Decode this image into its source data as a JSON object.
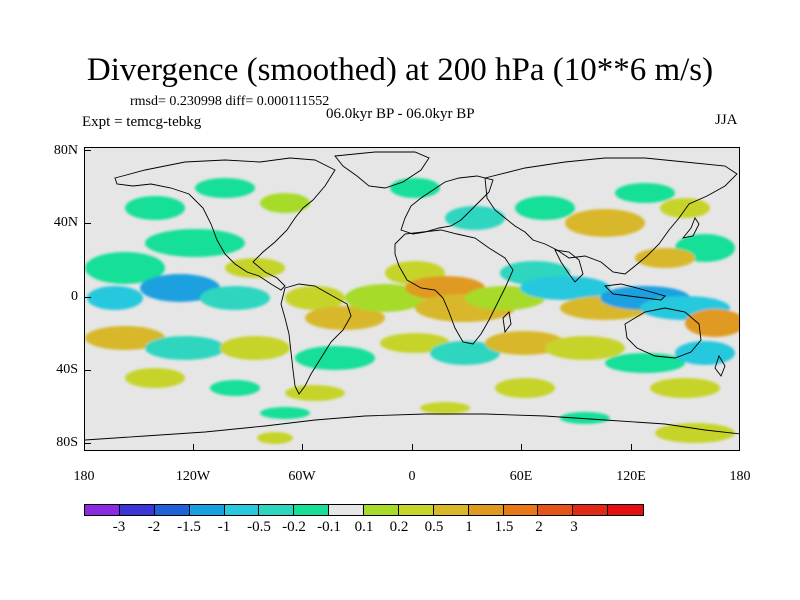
{
  "title": "Divergence (smoothed) at 200 hPa (10**6 m/s)",
  "stats": "rmsd= 0.230998 diff= 0.000111552",
  "experiment": "Expt = temcg-tebkg",
  "period": "06.0kyr BP - 06.0kyr BP",
  "season": "JJA",
  "map": {
    "y_axis_labels": [
      "80N",
      "40N",
      "0",
      "40S",
      "80S"
    ],
    "x_axis_labels": [
      "180",
      "120W",
      "60W",
      "0",
      "60E",
      "120E",
      "180"
    ],
    "background_color": "#e6e6e6",
    "coastline_color": "#000000"
  },
  "colorbar": {
    "colors": [
      "#8a2be2",
      "#3a35d4",
      "#1f62d8",
      "#1aa0e0",
      "#28c8de",
      "#2ed6c0",
      "#18df98",
      "#e6e6e6",
      "#a6db2a",
      "#c6d42c",
      "#d8b82a",
      "#e09a22",
      "#e6781a",
      "#e45418",
      "#e02a14",
      "#e41010"
    ],
    "labels": [
      "-3",
      "-2",
      "-1.5",
      "-1",
      "-0.5",
      "-0.2",
      "-0.1",
      "0.1",
      "0.2",
      "0.5",
      "1",
      "1.5",
      "2",
      "3"
    ]
  }
}
